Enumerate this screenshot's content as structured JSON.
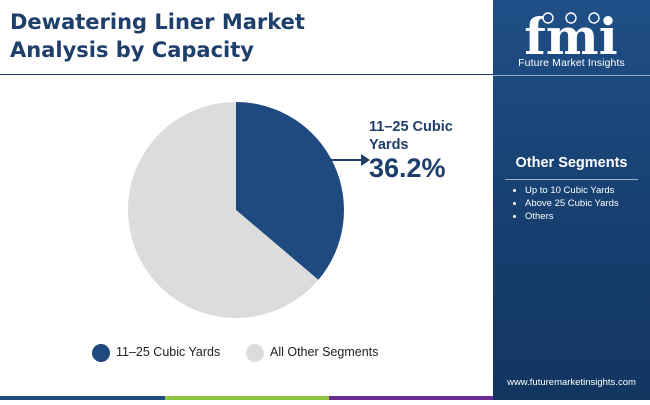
{
  "header": {
    "title_line1": "Dewatering Liner Market",
    "title_line2": "Analysis by Capacity"
  },
  "brand": {
    "logo_text": "fmi",
    "caption": "Future Market Insights",
    "website": "www.futuremarketinsights.com"
  },
  "sidebar": {
    "segments_title": "Other Segments",
    "segments": [
      "Up to 10 Cubic Yards",
      "Above 25 Cubic Yards",
      "Others"
    ]
  },
  "callout": {
    "label_line1": "11–25 Cubic",
    "label_line2": "Yards",
    "value": "36.2%"
  },
  "colors": {
    "primary": "#1e4a80",
    "other": "#dcdcdc",
    "sidebar": "#1a4577",
    "bar": [
      "#1e4a80",
      "#8dc63f",
      "#6a2c91"
    ]
  },
  "chart_data": {
    "type": "pie",
    "slices": [
      {
        "label": "11–25 Cubic Yards",
        "value": 36.2,
        "color": "#1e4a80"
      },
      {
        "label": "All Other Segments",
        "value": 63.8,
        "color": "#dcdcdc"
      }
    ],
    "legend": [
      "11–25 Cubic Yards",
      "All Other Segments"
    ],
    "legend_position": "bottom"
  }
}
